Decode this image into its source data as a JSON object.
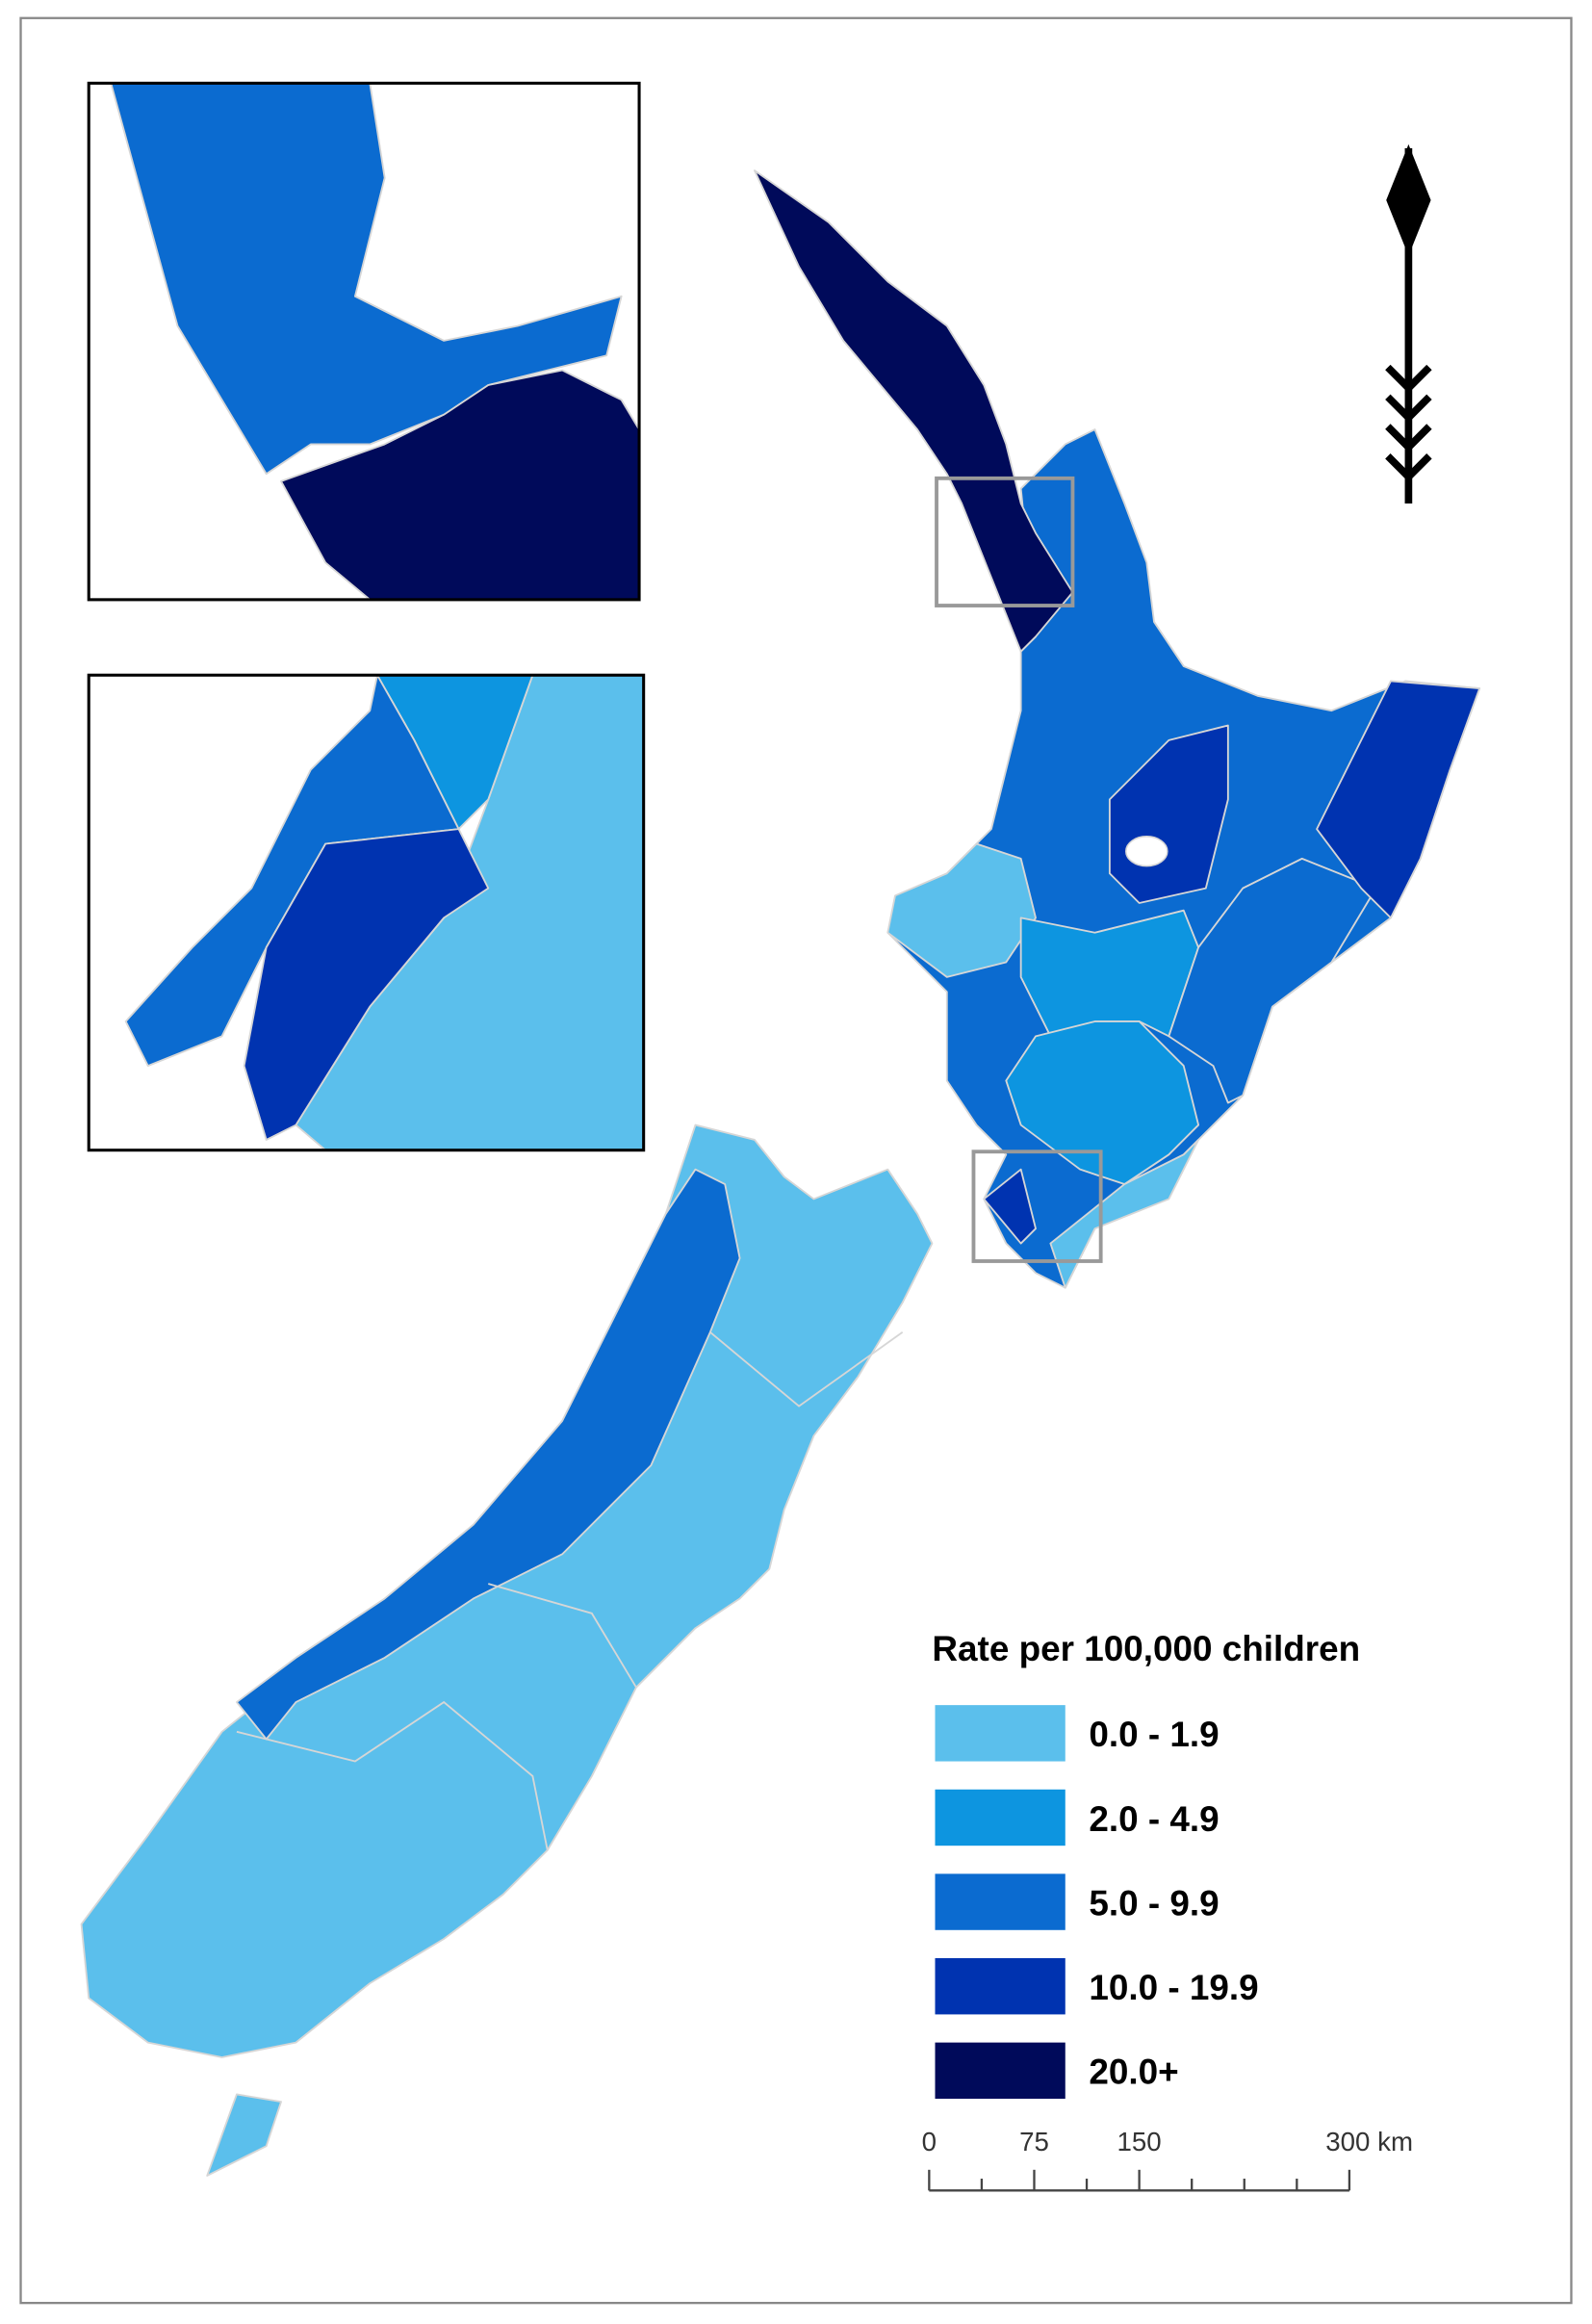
{
  "legend": {
    "title": "Rate per 100,000 children",
    "items": [
      {
        "label": "0.0 - 1.9",
        "color": "#5bbfec"
      },
      {
        "label": "2.0 - 4.9",
        "color": "#0d95e0"
      },
      {
        "label": "5.0 - 9.9",
        "color": "#0b6bd0"
      },
      {
        "label": "10.0 - 19.9",
        "color": "#0033b0"
      },
      {
        "label": "20.0+",
        "color": "#000a5a"
      }
    ]
  },
  "scale_bar": {
    "labels": [
      "0",
      "75",
      "150",
      "300 km"
    ]
  }
}
